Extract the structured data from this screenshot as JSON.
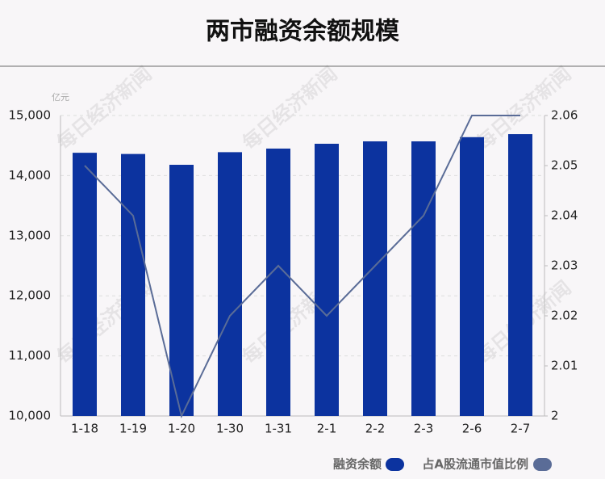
{
  "chart_data": {
    "type": "bar-line",
    "title": "两市融资余额规模",
    "y_unit": "亿元",
    "watermark": "每日经济新闻",
    "categories": [
      "1-18",
      "1-19",
      "1-20",
      "1-30",
      "1-31",
      "2-1",
      "2-2",
      "2-3",
      "2-6",
      "2-7"
    ],
    "series": [
      {
        "name": "融资余额",
        "color": "#0c339f",
        "type": "bar",
        "values": [
          14380,
          14360,
          14180,
          14390,
          14450,
          14530,
          14570,
          14570,
          14640,
          14690
        ]
      },
      {
        "name": "占A股流通市值比例",
        "color": "#5a6c97",
        "type": "line",
        "axis": "y2",
        "values": [
          2.05,
          2.04,
          2.0,
          2.02,
          2.03,
          2.02,
          2.03,
          2.04,
          2.06,
          2.06
        ]
      }
    ],
    "ylim": [
      10000,
      15000
    ],
    "yticks": [
      {
        "value": 10000,
        "label": "10,000"
      },
      {
        "value": 11000,
        "label": "11,000"
      },
      {
        "value": 12000,
        "label": "12,000"
      },
      {
        "value": 13000,
        "label": "13,000"
      },
      {
        "value": 14000,
        "label": "14,000"
      },
      {
        "value": 15000,
        "label": "15,000"
      }
    ],
    "y2lim": [
      2,
      2.06
    ],
    "y2ticks": [
      2,
      2.01,
      2.02,
      2.03,
      2.04,
      2.05,
      2.06
    ],
    "grid": true
  }
}
